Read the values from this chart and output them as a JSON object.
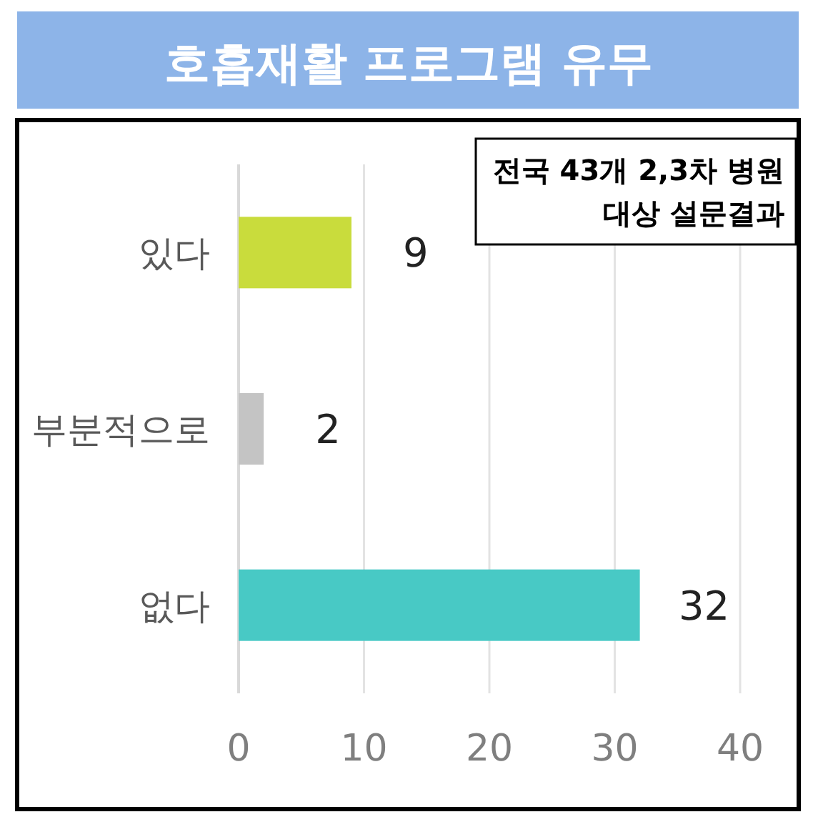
{
  "chart_data": {
    "type": "bar",
    "orientation": "horizontal",
    "title": "호흡재활 프로그램 유무",
    "categories": [
      "있다",
      "부분적으로",
      "없다"
    ],
    "values": [
      9,
      2,
      32
    ],
    "colors": [
      "#c9dc3c",
      "#c4c4c4",
      "#48c9c5"
    ],
    "xlim": [
      0,
      40
    ],
    "xticks": [
      0,
      10,
      20,
      30,
      40
    ],
    "grid": "x",
    "data_labels": true,
    "annotations": [
      "전국 43개 2,3차 병원\n대상 설문결과"
    ]
  }
}
